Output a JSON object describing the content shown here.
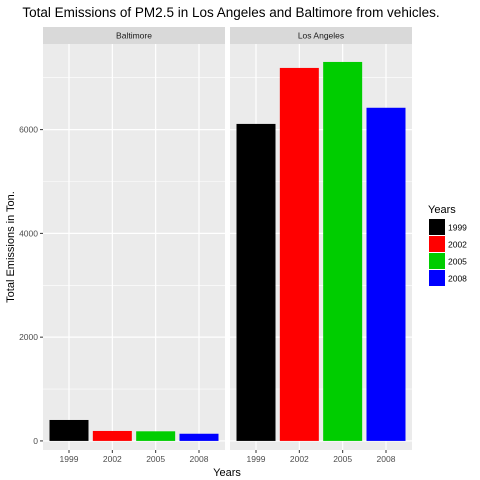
{
  "chart_data": {
    "type": "bar",
    "title": "Total Emissions of PM2.5 in Los Angeles and Baltimore from vehicles.",
    "xlabel": "Years",
    "ylabel": "Total Emissions in Ton.",
    "categories": [
      "1999",
      "2002",
      "2005",
      "2008"
    ],
    "y_ticks": [
      0,
      2000,
      4000,
      6000
    ],
    "ylim": [
      -175,
      7650
    ],
    "grid": true,
    "facets": [
      {
        "label": "Baltimore",
        "values": [
          403.8,
          192.0,
          185.4,
          138.2
        ]
      },
      {
        "label": "Los Angeles",
        "values": [
          6109.7,
          7188.7,
          7304.1,
          6421.0
        ]
      }
    ],
    "legend": {
      "title": "Years",
      "position": "right",
      "entries": [
        {
          "label": "1999",
          "color": "#000000"
        },
        {
          "label": "2002",
          "color": "#FF0000"
        },
        {
          "label": "2005",
          "color": "#00CD00"
        },
        {
          "label": "2008",
          "color": "#0000FF"
        }
      ]
    }
  }
}
